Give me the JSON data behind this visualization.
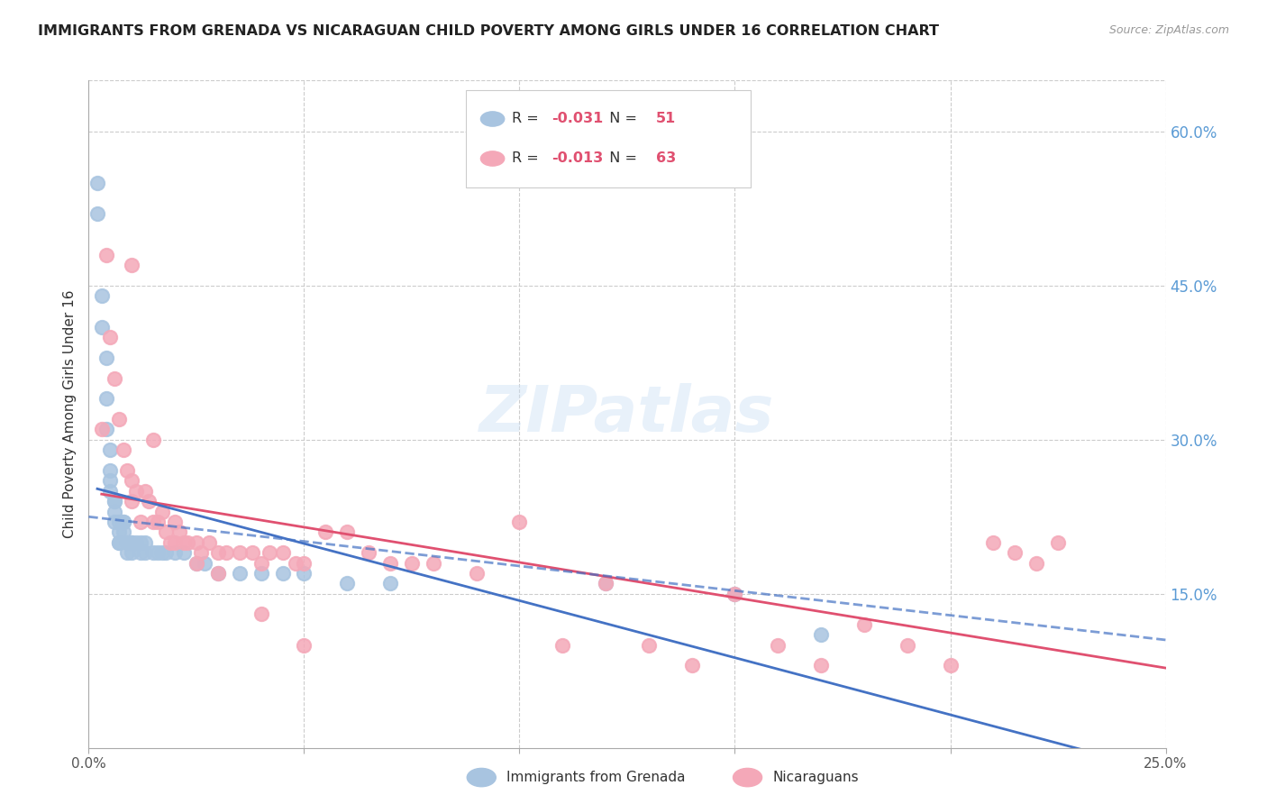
{
  "title": "IMMIGRANTS FROM GRENADA VS NICARAGUAN CHILD POVERTY AMONG GIRLS UNDER 16 CORRELATION CHART",
  "source": "Source: ZipAtlas.com",
  "ylabel": "Child Poverty Among Girls Under 16",
  "xlim": [
    0.0,
    0.25
  ],
  "ylim": [
    0.0,
    0.65
  ],
  "xticks": [
    0.0,
    0.05,
    0.1,
    0.15,
    0.2,
    0.25
  ],
  "ytick_labels_right": [
    "60.0%",
    "45.0%",
    "30.0%",
    "15.0%"
  ],
  "yticks_right": [
    0.6,
    0.45,
    0.3,
    0.15
  ],
  "legend_labels": [
    "Immigrants from Grenada",
    "Nicaraguans"
  ],
  "legend_R": [
    -0.031,
    -0.013
  ],
  "legend_N": [
    51,
    63
  ],
  "blue_color": "#a8c4e0",
  "pink_color": "#f4a8b8",
  "blue_line_color": "#4472c4",
  "pink_line_color": "#e05070",
  "watermark": "ZIPatlas",
  "blue_scatter_x": [
    0.002,
    0.002,
    0.003,
    0.003,
    0.004,
    0.004,
    0.004,
    0.005,
    0.005,
    0.005,
    0.005,
    0.006,
    0.006,
    0.006,
    0.006,
    0.007,
    0.007,
    0.007,
    0.007,
    0.008,
    0.008,
    0.008,
    0.009,
    0.009,
    0.009,
    0.01,
    0.01,
    0.01,
    0.011,
    0.012,
    0.012,
    0.013,
    0.013,
    0.015,
    0.016,
    0.017,
    0.018,
    0.02,
    0.022,
    0.025,
    0.027,
    0.03,
    0.035,
    0.04,
    0.045,
    0.05,
    0.06,
    0.07,
    0.12,
    0.15,
    0.17
  ],
  "blue_scatter_y": [
    0.55,
    0.52,
    0.44,
    0.41,
    0.38,
    0.34,
    0.31,
    0.29,
    0.27,
    0.26,
    0.25,
    0.24,
    0.24,
    0.23,
    0.22,
    0.22,
    0.21,
    0.2,
    0.2,
    0.22,
    0.22,
    0.21,
    0.2,
    0.2,
    0.19,
    0.2,
    0.2,
    0.19,
    0.2,
    0.2,
    0.19,
    0.2,
    0.19,
    0.19,
    0.19,
    0.19,
    0.19,
    0.19,
    0.19,
    0.18,
    0.18,
    0.17,
    0.17,
    0.17,
    0.17,
    0.17,
    0.16,
    0.16,
    0.16,
    0.15,
    0.11
  ],
  "pink_scatter_x": [
    0.003,
    0.004,
    0.005,
    0.006,
    0.007,
    0.008,
    0.009,
    0.01,
    0.01,
    0.011,
    0.012,
    0.013,
    0.014,
    0.015,
    0.016,
    0.017,
    0.018,
    0.019,
    0.02,
    0.021,
    0.022,
    0.023,
    0.025,
    0.026,
    0.028,
    0.03,
    0.032,
    0.035,
    0.038,
    0.04,
    0.042,
    0.045,
    0.048,
    0.05,
    0.055,
    0.06,
    0.065,
    0.07,
    0.075,
    0.08,
    0.09,
    0.1,
    0.11,
    0.12,
    0.13,
    0.14,
    0.15,
    0.16,
    0.17,
    0.18,
    0.19,
    0.2,
    0.21,
    0.215,
    0.22,
    0.225,
    0.01,
    0.015,
    0.02,
    0.025,
    0.03,
    0.04,
    0.05
  ],
  "pink_scatter_y": [
    0.31,
    0.48,
    0.4,
    0.36,
    0.32,
    0.29,
    0.27,
    0.26,
    0.24,
    0.25,
    0.22,
    0.25,
    0.24,
    0.22,
    0.22,
    0.23,
    0.21,
    0.2,
    0.2,
    0.21,
    0.2,
    0.2,
    0.2,
    0.19,
    0.2,
    0.19,
    0.19,
    0.19,
    0.19,
    0.18,
    0.19,
    0.19,
    0.18,
    0.18,
    0.21,
    0.21,
    0.19,
    0.18,
    0.18,
    0.18,
    0.17,
    0.22,
    0.1,
    0.16,
    0.1,
    0.08,
    0.15,
    0.1,
    0.08,
    0.12,
    0.1,
    0.08,
    0.2,
    0.19,
    0.18,
    0.2,
    0.47,
    0.3,
    0.22,
    0.18,
    0.17,
    0.13,
    0.1
  ]
}
